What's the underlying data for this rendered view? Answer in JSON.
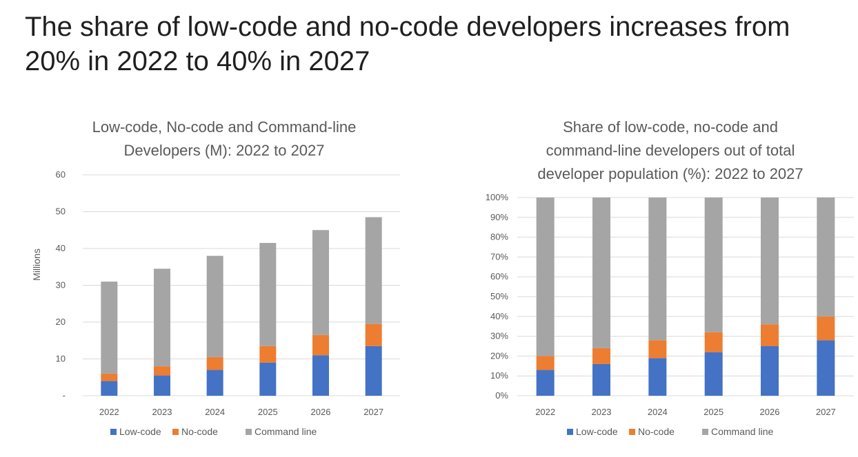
{
  "slide": {
    "title": "The share of low-code and no-code developers increases from 20% in 2022 to 40% in 2027"
  },
  "colors": {
    "low_code": "#4472c4",
    "no_code": "#ed7d31",
    "command_line": "#a5a5a5",
    "grid": "#d9d9d9"
  },
  "chart_data": [
    {
      "type": "bar",
      "stacked": true,
      "title_lines": [
        "Low-code, No-code and Command-line",
        "Developers (M): 2022 to 2027"
      ],
      "ylabel": "Millions",
      "xlabel": "",
      "categories": [
        "2022",
        "2023",
        "2024",
        "2025",
        "2026",
        "2027"
      ],
      "ylim": [
        0,
        60
      ],
      "yticks": [
        0,
        10,
        20,
        30,
        40,
        50,
        60
      ],
      "ytick_labels": [
        "-",
        "10",
        "20",
        "30",
        "40",
        "50",
        "60"
      ],
      "grid": true,
      "legend_position": "bottom",
      "series": [
        {
          "name": "Low-code",
          "color_key": "low_code",
          "values": [
            4.0,
            5.5,
            7.0,
            9.0,
            11.0,
            13.5
          ]
        },
        {
          "name": "No-code",
          "color_key": "no_code",
          "values": [
            2.0,
            2.5,
            3.5,
            4.5,
            5.5,
            6.0
          ]
        },
        {
          "name": "Command line",
          "color_key": "command_line",
          "values": [
            25.0,
            26.5,
            27.5,
            28.0,
            28.5,
            29.0
          ]
        }
      ]
    },
    {
      "type": "bar",
      "stacked": true,
      "title_lines": [
        "Share of low-code, no-code and",
        "command-line developers out of total",
        "developer population (%): 2022 to 2027"
      ],
      "ylabel": "",
      "xlabel": "",
      "categories": [
        "2022",
        "2023",
        "2024",
        "2025",
        "2026",
        "2027"
      ],
      "ylim": [
        0,
        100
      ],
      "yticks": [
        0,
        10,
        20,
        30,
        40,
        50,
        60,
        70,
        80,
        90,
        100
      ],
      "ytick_labels": [
        "0%",
        "10%",
        "20%",
        "30%",
        "40%",
        "50%",
        "60%",
        "70%",
        "80%",
        "90%",
        "100%"
      ],
      "grid": true,
      "legend_position": "bottom",
      "series": [
        {
          "name": "Low-code",
          "color_key": "low_code",
          "values": [
            13,
            16,
            19,
            22,
            25,
            28
          ]
        },
        {
          "name": "No-code",
          "color_key": "no_code",
          "values": [
            7,
            8,
            9,
            10,
            11,
            12
          ]
        },
        {
          "name": "Command line",
          "color_key": "command_line",
          "values": [
            80,
            76,
            72,
            68,
            64,
            60
          ]
        }
      ]
    }
  ]
}
